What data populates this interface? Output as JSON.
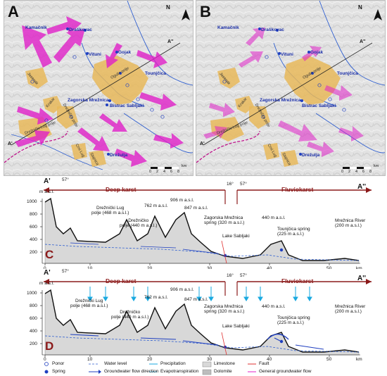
{
  "maps": [
    {
      "letter": "A",
      "places": {
        "kamacnik": "Kamačnik",
        "drezkovac": "Draškovac",
        "vituni": "Vituni",
        "gojak": "Gojak",
        "tounjcica": "Tounjčica",
        "zagorska": "Zagorska Mrežnica",
        "bistrac": "Bistrac Sabljaki",
        "dreznica": "Drežnica",
        "ogulin": "Ogulin",
        "drezulja": "Drežulja"
      },
      "poljes": {
        "jasenak": "Jasenak",
        "ogulin_polje": "Ogulin polje",
        "krakar": "Krakar",
        "dreznicko": "Drežničko polje",
        "lug": "Drežnički Lug polje",
        "crni": "Crni Lug",
        "stajnica": "Stajnica"
      },
      "section_start": "A'",
      "section_end": "A''"
    },
    {
      "letter": "B",
      "places": {
        "kamacnik": "Kamačnik",
        "drezkovac": "Draškovac",
        "vituni": "Vituni",
        "gojak": "Gojak",
        "tounjcica": "Tounjčica",
        "zagorska": "Zagorska Mrežnica",
        "bistrac": "Bistrac Sabljaki",
        "dreznica": "Drežnica",
        "ogulin": "Ogulin",
        "drezulja": "Drežulja"
      },
      "poljes": {
        "jasenak": "Jasenak",
        "ogulin_polje": "Ogulin polje",
        "krakar": "Krakar",
        "dreznicko": "Drežničko polje",
        "lug": "Drežnički Lug polje",
        "crni": "Crni Lug",
        "stajnica": "Stajnica"
      },
      "section_start": "A'",
      "section_end": "A''"
    }
  ],
  "north": "N",
  "scale": {
    "ticks": [
      "0",
      "2",
      "4",
      "6",
      "8"
    ],
    "unit": "km"
  },
  "sections": [
    {
      "tag": "C",
      "start": "A'",
      "end": "A''",
      "zone_left": "Deep karst",
      "zone_right": "Fluviokarst",
      "yunit": "m a.s.l.",
      "yticks": [
        "1000",
        "800",
        "600",
        "400",
        "200"
      ],
      "xticks": [
        "0",
        "10",
        "20",
        "30",
        "40",
        "50"
      ],
      "xunit": "km",
      "bearings": [
        "57°",
        "16°",
        "57°"
      ],
      "labels": {
        "lug": "Drežnički Lug\npolje (468 m a.s.l.)",
        "dreznicko": "Drežničko\npolje (440 m a.s.l.)",
        "h762": "762 m a.s.l.",
        "h906": "906 m a.s.l.",
        "h847": "847 m a.s.l.",
        "zagorska": "Zagorska Mrežnica\nspring (320 m a.s.l.)",
        "sabljaki": "Lake Sabljaki",
        "h440": "440 m a.s.l.",
        "tounjcica": "Tounjčica spring\n(225 m a.s.l.)",
        "mreznica": "Mrežnica River\n(200 m a.s.l.)"
      }
    },
    {
      "tag": "D",
      "start": "A'",
      "end": "A''",
      "zone_left": "Deep karst",
      "zone_right": "Fluviokarst",
      "yunit": "m a.s.l.",
      "yticks": [
        "1000",
        "800",
        "600",
        "400",
        "200"
      ],
      "xticks": [
        "0",
        "10",
        "20",
        "30",
        "40",
        "50"
      ],
      "xunit": "km",
      "bearings": [
        "57°",
        "16°",
        "57°"
      ],
      "labels": {
        "lug": "Drežnički Lug\npolje (468 m a.s.l.)",
        "dreznicko": "Drežničko\npolje (440 m a.s.l.)",
        "h762": "762 m a.s.l.",
        "h906": "906 m a.s.l.",
        "h847": "847 m a.s.l.",
        "zagorska": "Zagorska Mrežnica\nspring (320 m a.s.l.)",
        "sabljaki": "Lake Sabljaki",
        "h440": "440 m a.s.l.",
        "tounjcica": "Tounjčica spring\n(225 m a.s.l.)",
        "mreznica": "Mrežnica River\n(200 m a.s.l.)"
      }
    }
  ],
  "legend": {
    "ponor": "Ponor",
    "spring": "Spring",
    "water_level": "Water level",
    "gw_direction": "Groundwater flow direction",
    "precipitation": "Precipitation",
    "evapotranspiration": "Evapotranspiration",
    "limestone": "Limestone",
    "dolomite": "Dolomite",
    "fault": "Fault",
    "general_flow": "General groundwater flow"
  },
  "colors": {
    "polje": "#e8b85a",
    "arrow": "#e020c8",
    "spring": "#1f3fc0",
    "river": "#2f5fd0",
    "zone": "#8b1a1a"
  }
}
